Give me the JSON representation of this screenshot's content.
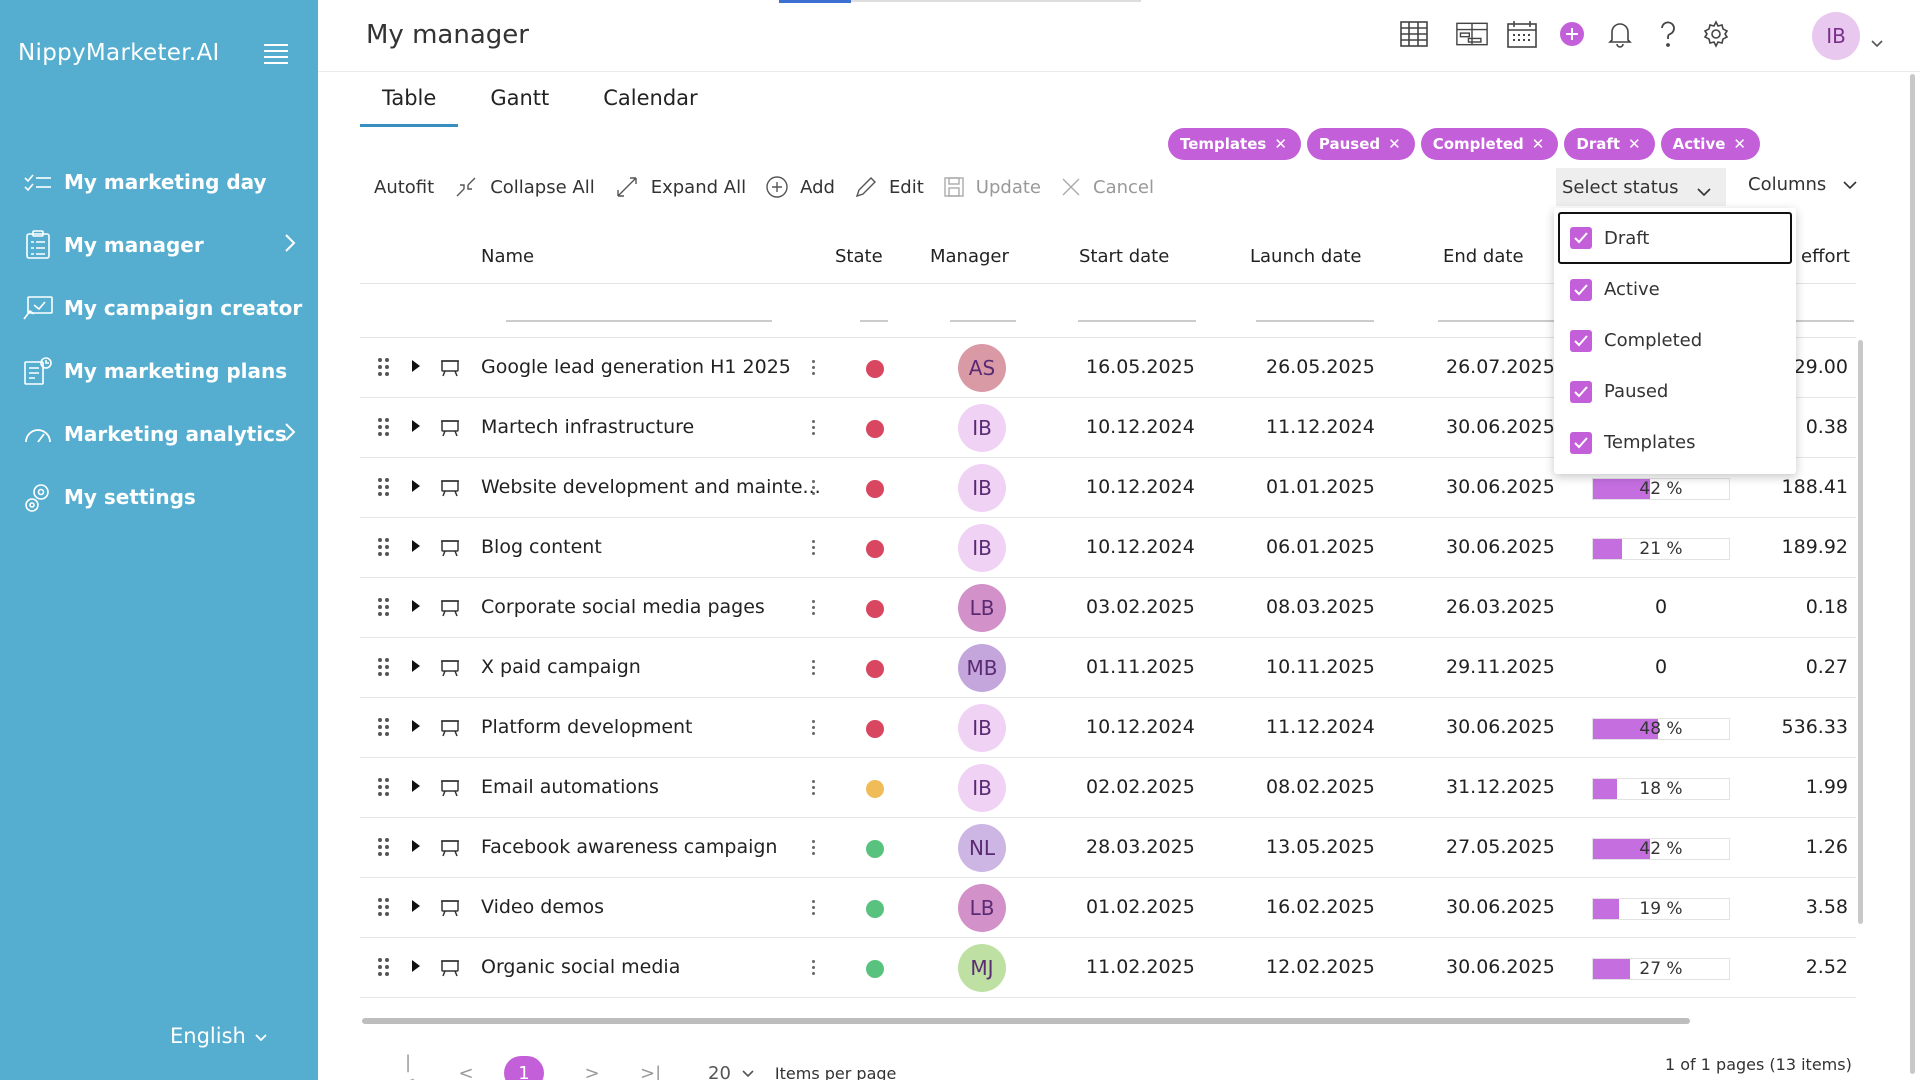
{
  "sidebar": {
    "brand": "NippyMarketer.AI",
    "items": [
      {
        "label": "My marketing day",
        "icon": "checklist-icon",
        "chevron": false
      },
      {
        "label": "My manager",
        "icon": "clipboard-icon",
        "chevron": true
      },
      {
        "label": "My campaign creator",
        "icon": "campaign-board-icon",
        "chevron": false
      },
      {
        "label": "My marketing plans",
        "icon": "plans-icon",
        "chevron": false
      },
      {
        "label": "Marketing analytics",
        "icon": "gauge-icon",
        "chevron": true
      },
      {
        "label": "My settings",
        "icon": "settings-gears-icon",
        "chevron": false
      }
    ],
    "language": "English"
  },
  "header": {
    "title": "My manager",
    "avatar": "IB",
    "icons": [
      "table-view-icon",
      "gantt-view-icon",
      "calendar-icon",
      "add-circle-icon",
      "bell-icon",
      "help-icon",
      "settings-icon"
    ]
  },
  "tabs": [
    "Table",
    "Gantt",
    "Calendar"
  ],
  "chips": [
    "Templates",
    "Paused",
    "Completed",
    "Draft",
    "Active"
  ],
  "toolbar": {
    "autofit": "Autofit",
    "collapse": "Collapse All",
    "expand": "Expand All",
    "add": "Add",
    "edit": "Edit",
    "update": "Update",
    "cancel": "Cancel",
    "select_status": "Select status",
    "columns": "Columns"
  },
  "columns": [
    "Name",
    "State",
    "Manager",
    "Start date",
    "Launch date",
    "End date",
    "effort"
  ],
  "status_options": [
    {
      "label": "Draft",
      "checked": true
    },
    {
      "label": "Active",
      "checked": true
    },
    {
      "label": "Completed",
      "checked": true
    },
    {
      "label": "Paused",
      "checked": true
    },
    {
      "label": "Templates",
      "checked": true
    }
  ],
  "colors": {
    "accent": "#c35fd9",
    "sidebar": "#55aecf",
    "red": "#d94660",
    "yellow": "#f0bc58",
    "green": "#59c27f"
  },
  "rows": [
    {
      "name": "Google lead generation H1 2025",
      "state": "red",
      "manager": "AS",
      "mgr_color": "#d99aa6",
      "start": "16.05.2025",
      "launch": "26.05.2025",
      "end": "26.07.2025",
      "progress": null,
      "progress_text": "",
      "effort": "29.00"
    },
    {
      "name": "Martech infrastructure",
      "state": "red",
      "manager": "IB",
      "mgr_color": "#f0d2f4",
      "start": "10.12.2024",
      "launch": "11.12.2024",
      "end": "30.06.2025",
      "progress": null,
      "progress_text": "",
      "effort": "0.38"
    },
    {
      "name": "Website development and mainte...",
      "state": "red",
      "manager": "IB",
      "mgr_color": "#f0d2f4",
      "start": "10.12.2024",
      "launch": "01.01.2025",
      "end": "30.06.2025",
      "progress": 42,
      "progress_text": "42 %",
      "effort": "188.41"
    },
    {
      "name": "Blog content",
      "state": "red",
      "manager": "IB",
      "mgr_color": "#f0d2f4",
      "start": "10.12.2024",
      "launch": "06.01.2025",
      "end": "30.06.2025",
      "progress": 21,
      "progress_text": "21 %",
      "effort": "189.92"
    },
    {
      "name": "Corporate social media pages",
      "state": "red",
      "manager": "LB",
      "mgr_color": "#d291c9",
      "start": "03.02.2025",
      "launch": "08.03.2025",
      "end": "26.03.2025",
      "progress": null,
      "progress_text": "0",
      "effort": "0.18"
    },
    {
      "name": "X paid campaign",
      "state": "red",
      "manager": "MB",
      "mgr_color": "#c5a6dc",
      "start": "01.11.2025",
      "launch": "10.11.2025",
      "end": "29.11.2025",
      "progress": null,
      "progress_text": "0",
      "effort": "0.27"
    },
    {
      "name": "Platform development",
      "state": "red",
      "manager": "IB",
      "mgr_color": "#f0d2f4",
      "start": "10.12.2024",
      "launch": "11.12.2024",
      "end": "30.06.2025",
      "progress": 48,
      "progress_text": "48 %",
      "effort": "536.33"
    },
    {
      "name": "Email automations",
      "state": "yellow",
      "manager": "IB",
      "mgr_color": "#f0d2f4",
      "start": "02.02.2025",
      "launch": "08.02.2025",
      "end": "31.12.2025",
      "progress": 18,
      "progress_text": "18 %",
      "effort": "1.99"
    },
    {
      "name": "Facebook awareness campaign",
      "state": "green",
      "manager": "NL",
      "mgr_color": "#cdb6e3",
      "start": "28.03.2025",
      "launch": "13.05.2025",
      "end": "27.05.2025",
      "progress": 42,
      "progress_text": "42 %",
      "effort": "1.26"
    },
    {
      "name": "Video demos",
      "state": "green",
      "manager": "LB",
      "mgr_color": "#d291c9",
      "start": "01.02.2025",
      "launch": "16.02.2025",
      "end": "30.06.2025",
      "progress": 19,
      "progress_text": "19 %",
      "effort": "3.58"
    },
    {
      "name": "Organic social media",
      "state": "green",
      "manager": "MJ",
      "mgr_color": "#bfe0a3",
      "start": "11.02.2025",
      "launch": "12.02.2025",
      "end": "30.06.2025",
      "progress": 27,
      "progress_text": "27 %",
      "effort": "2.52"
    }
  ],
  "pager": {
    "current_page": "1",
    "page_size": "20",
    "items_per_page": "Items per page",
    "summary": "1 of 1 pages (13 items)"
  }
}
